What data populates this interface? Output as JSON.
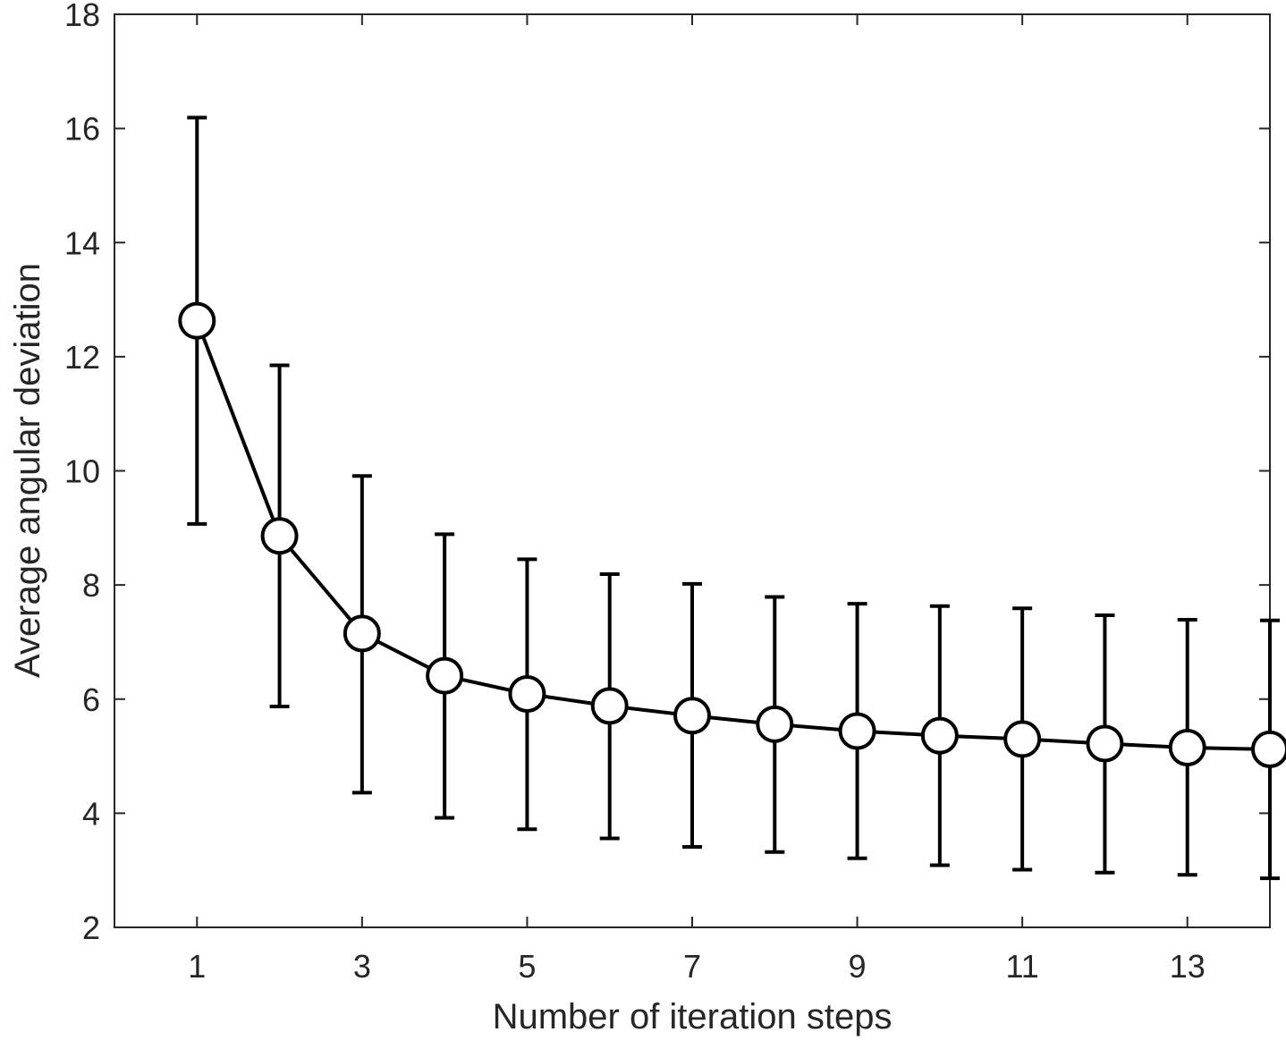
{
  "chart_data": {
    "type": "line",
    "title": "",
    "xlabel": "Number of iteration steps",
    "ylabel": "Average angular deviation",
    "xlim": [
      0,
      14
    ],
    "ylim": [
      2,
      18
    ],
    "x_ticks": [
      1,
      3,
      5,
      7,
      9,
      11,
      13
    ],
    "y_ticks": [
      2,
      4,
      6,
      8,
      10,
      12,
      14,
      16,
      18
    ],
    "grid": false,
    "legend": "none",
    "series": [
      {
        "x": [
          1,
          2,
          3,
          4,
          5,
          6,
          7,
          8,
          9,
          10,
          11,
          12,
          13,
          14
        ],
        "y": [
          12.63,
          8.86,
          7.15,
          6.41,
          6.09,
          5.88,
          5.71,
          5.56,
          5.44,
          5.36,
          5.3,
          5.22,
          5.15,
          5.12
        ],
        "err_low": [
          9.07,
          5.87,
          4.36,
          3.92,
          3.72,
          3.56,
          3.41,
          3.32,
          3.21,
          3.09,
          3.01,
          2.96,
          2.92,
          2.86
        ],
        "err_high": [
          16.19,
          11.85,
          9.91,
          8.89,
          8.45,
          8.19,
          8.02,
          7.79,
          7.67,
          7.63,
          7.59,
          7.47,
          7.39,
          7.38
        ]
      }
    ],
    "colors": {
      "line": "#000000",
      "marker_fill": "#ffffff",
      "axis": "#262626",
      "text": "#262626"
    }
  }
}
